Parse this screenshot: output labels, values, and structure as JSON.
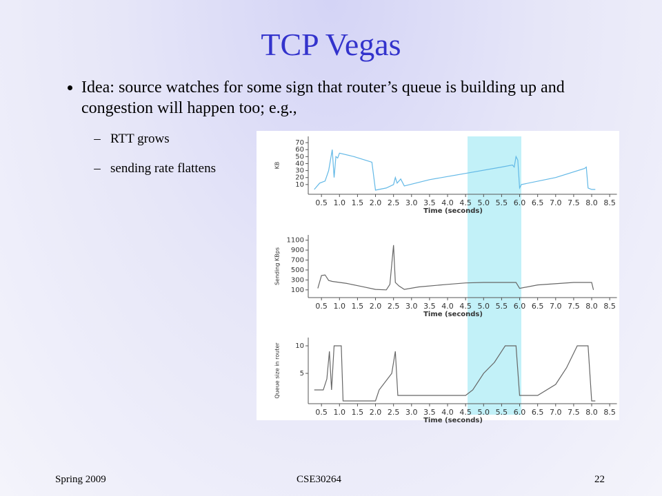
{
  "slide": {
    "title": "TCP Vegas",
    "bullets": [
      {
        "text": "Idea: source watches for some sign that router’s queue is building up and congestion will happen too; e.g.,",
        "sub": [
          "RTT grows",
          "sending rate flattens"
        ]
      }
    ],
    "footer": {
      "left": "Spring 2009",
      "center": "CSE30264",
      "right": "22"
    }
  },
  "chart_data": [
    {
      "type": "line",
      "ylabel": "KB",
      "xlabel": "Time (seconds)",
      "color": "#62b8e6",
      "x": [
        0.3,
        0.45,
        0.6,
        0.7,
        0.8,
        0.85,
        0.9,
        0.95,
        1.0,
        1.4,
        1.9,
        2.0,
        2.3,
        2.5,
        2.55,
        2.6,
        2.7,
        2.8,
        3.5,
        4.5,
        5.5,
        5.8,
        5.85,
        5.9,
        5.95,
        6.0,
        6.05,
        7.0,
        7.8,
        7.85,
        7.9,
        8.0,
        8.1
      ],
      "values": [
        3,
        12,
        15,
        30,
        60,
        20,
        50,
        48,
        55,
        50,
        42,
        2,
        5,
        10,
        20,
        12,
        18,
        8,
        17,
        26,
        35,
        38,
        35,
        50,
        45,
        5,
        10,
        20,
        33,
        35,
        5,
        3,
        3
      ],
      "xlim": [
        0.2,
        8.7
      ],
      "ylim": [
        0,
        75
      ],
      "yticks": [
        10,
        20,
        30,
        40,
        50,
        60,
        70
      ],
      "xticks": [
        0.5,
        {
          "value": 1,
          "label": "1.0"
        },
        1.5,
        {
          "value": 2,
          "label": "2.0"
        },
        2.5,
        {
          "value": 3,
          "label": "3.0"
        },
        3.5,
        {
          "value": 4,
          "label": "4.0"
        },
        4.5,
        {
          "value": 5,
          "label": "5.0"
        },
        5.5,
        {
          "value": 6,
          "label": "6.0"
        },
        6.5,
        {
          "value": 7,
          "label": "7.0"
        },
        7.5,
        {
          "value": 8,
          "label": "8.0"
        },
        8.5
      ]
    },
    {
      "type": "line",
      "ylabel": "Sending KBps",
      "xlabel": "Time (seconds)",
      "color": "#666666",
      "x": [
        0.4,
        0.5,
        0.6,
        0.7,
        0.8,
        1.2,
        1.6,
        2.0,
        2.3,
        2.4,
        2.5,
        2.55,
        2.65,
        2.8,
        3.2,
        4.0,
        4.5,
        5.0,
        5.9,
        6.0,
        6.5,
        7.5,
        8.0,
        8.05
      ],
      "values": [
        130,
        390,
        400,
        290,
        270,
        230,
        170,
        110,
        100,
        210,
        1000,
        250,
        180,
        110,
        160,
        210,
        240,
        250,
        250,
        130,
        200,
        250,
        250,
        100
      ],
      "xlim": [
        0.2,
        8.7
      ],
      "ylim": [
        0,
        1150
      ],
      "yticks": [
        100,
        300,
        500,
        700,
        900,
        1100
      ],
      "xticks": [
        0.5,
        {
          "value": 1,
          "label": "1.0"
        },
        1.5,
        {
          "value": 2,
          "label": "2.0"
        },
        2.5,
        {
          "value": 3,
          "label": "3.0"
        },
        3.5,
        {
          "value": 4,
          "label": "4.0"
        },
        4.5,
        {
          "value": 5,
          "label": "5.0"
        },
        5.5,
        {
          "value": 6,
          "label": "6.0"
        },
        6.5,
        {
          "value": 7,
          "label": "7.0"
        },
        7.5,
        {
          "value": 8,
          "label": "8.0"
        },
        8.5
      ]
    },
    {
      "type": "line",
      "ylabel": "Queue size in router",
      "xlabel": "Time (seconds)",
      "color": "#666666",
      "x": [
        0.3,
        0.55,
        0.65,
        0.72,
        0.78,
        0.85,
        1.05,
        1.1,
        2.0,
        2.1,
        2.45,
        2.55,
        2.62,
        2.7,
        4.5,
        4.7,
        5.0,
        5.3,
        5.6,
        5.9,
        6.0,
        6.5,
        7.0,
        7.3,
        7.6,
        7.9,
        8.0,
        8.1
      ],
      "values": [
        2,
        2,
        4,
        9,
        2,
        10,
        10,
        0,
        0,
        2,
        5,
        9,
        1,
        1,
        1,
        2,
        5,
        7,
        10,
        10,
        1,
        1,
        3,
        6,
        10,
        10,
        0,
        0
      ],
      "xlim": [
        0.2,
        8.7
      ],
      "ylim": [
        0,
        11
      ],
      "yticks": [
        5,
        10
      ],
      "xticks": [
        0.5,
        {
          "value": 1,
          "label": "1.0"
        },
        1.5,
        {
          "value": 2,
          "label": "2.0"
        },
        2.5,
        {
          "value": 3,
          "label": "3.0"
        },
        3.5,
        {
          "value": 4,
          "label": "4.0"
        },
        4.5,
        {
          "value": 5,
          "label": "5.0"
        },
        5.5,
        {
          "value": 6,
          "label": "6.0"
        },
        6.5,
        {
          "value": 7,
          "label": "7.0"
        },
        7.5,
        {
          "value": 8,
          "label": "8.0"
        },
        8.5
      ]
    }
  ]
}
